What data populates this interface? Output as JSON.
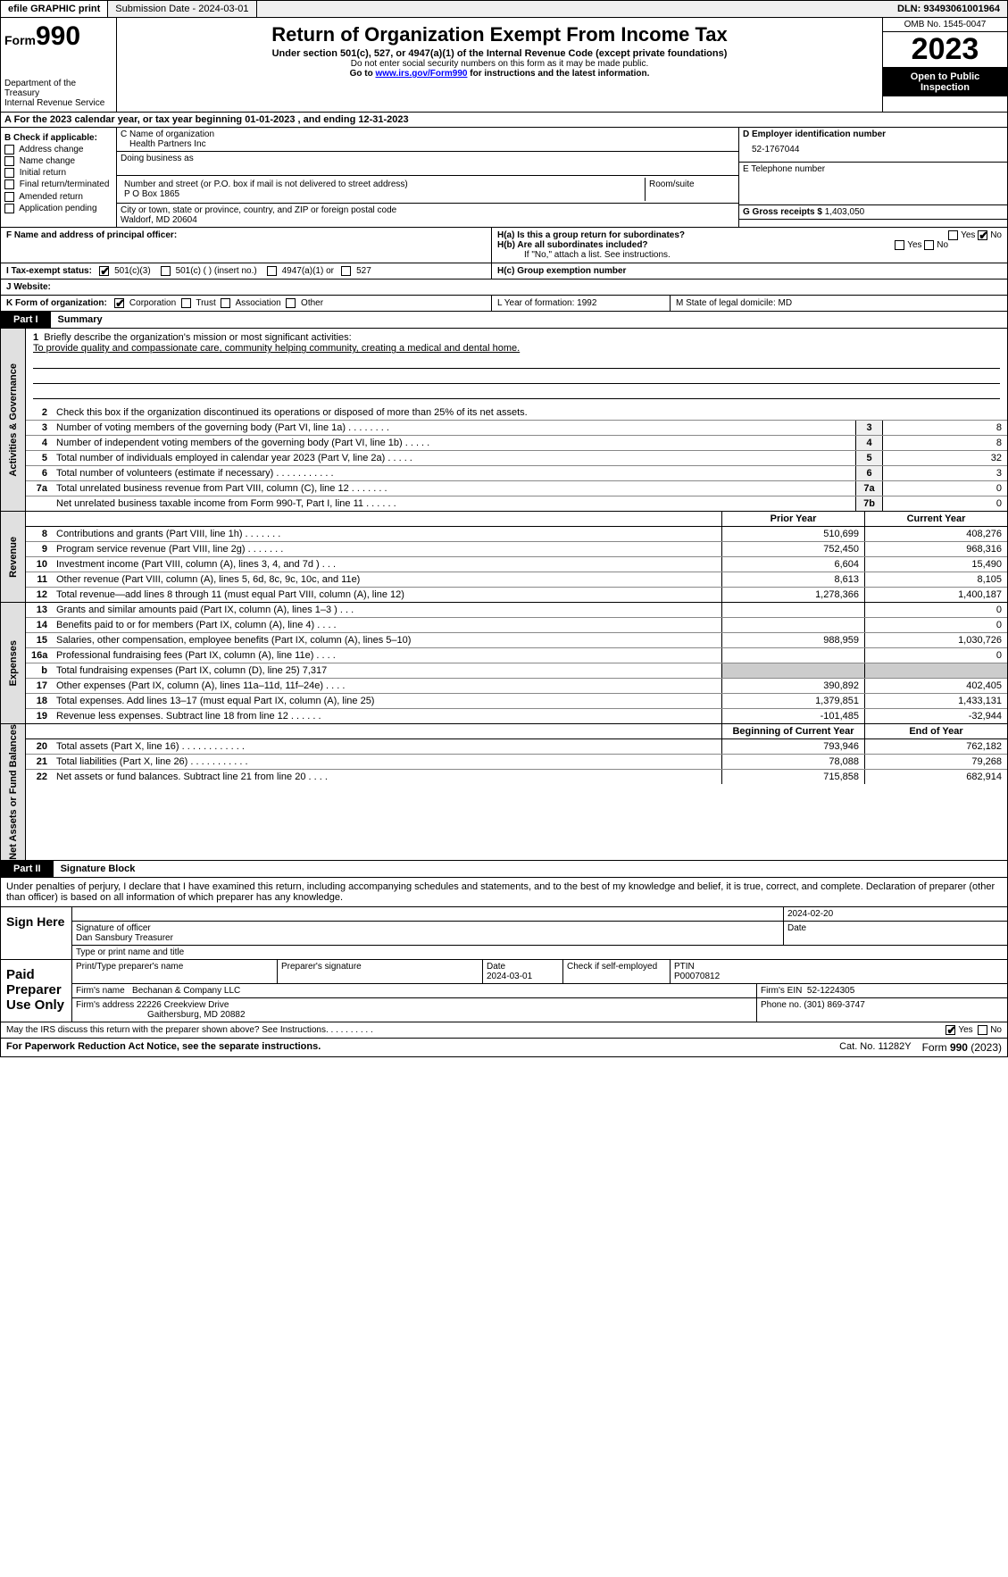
{
  "topbar": {
    "efile": "efile GRAPHIC print",
    "submission": "Submission Date - 2024-03-01",
    "dln": "DLN: 93493061001964"
  },
  "header": {
    "form_label": "Form",
    "form_num": "990",
    "dept1": "Department of the Treasury",
    "dept2": "Internal Revenue Service",
    "title": "Return of Organization Exempt From Income Tax",
    "subtitle": "Under section 501(c), 527, or 4947(a)(1) of the Internal Revenue Code (except private foundations)",
    "note1": "Do not enter social security numbers on this form as it may be made public.",
    "note2_pre": "Go to ",
    "note2_link": "www.irs.gov/Form990",
    "note2_post": " for instructions and the latest information.",
    "omb": "OMB No. 1545-0047",
    "year": "2023",
    "inspect": "Open to Public Inspection"
  },
  "sectionA": "A For the 2023 calendar year, or tax year beginning 01-01-2023    , and ending 12-31-2023",
  "colB": {
    "title": "B Check if applicable:",
    "items": [
      "Address change",
      "Name change",
      "Initial return",
      "Final return/terminated",
      "Amended return",
      "Application pending"
    ]
  },
  "colC": {
    "name_lbl": "C Name of organization",
    "name": "Health Partners Inc",
    "dba_lbl": "Doing business as",
    "addr_lbl": "Number and street (or P.O. box if mail is not delivered to street address)",
    "addr": "P O Box 1865",
    "room_lbl": "Room/suite",
    "city_lbl": "City or town, state or province, country, and ZIP or foreign postal code",
    "city": "Waldorf, MD  20604"
  },
  "colD": {
    "ein_lbl": "D Employer identification number",
    "ein": "52-1767044",
    "phone_lbl": "E Telephone number",
    "gross_lbl": "G Gross receipts $ ",
    "gross": "1,403,050"
  },
  "rowF": {
    "label": "F  Name and address of principal officer:",
    "ha": "H(a)  Is this a group return for subordinates?",
    "hb": "H(b)  Are all subordinates included?",
    "hb_note": "If \"No,\" attach a list. See instructions.",
    "hc": "H(c)  Group exemption number",
    "yes": "Yes",
    "no": "No"
  },
  "rowI": {
    "label": "I  Tax-exempt status:",
    "o1": "501(c)(3)",
    "o2": "501(c) (  ) (insert no.)",
    "o3": "4947(a)(1) or",
    "o4": "527"
  },
  "rowJ": "J  Website:",
  "rowK": {
    "label": "K Form of organization:",
    "o1": "Corporation",
    "o2": "Trust",
    "o3": "Association",
    "o4": "Other",
    "L": "L Year of formation: 1992",
    "M": "M State of legal domicile: MD"
  },
  "part1": {
    "tag": "Part I",
    "title": "Summary"
  },
  "tabs": {
    "t1": "Activities & Governance",
    "t2": "Revenue",
    "t3": "Expenses",
    "t4": "Net Assets or Fund Balances"
  },
  "mission": {
    "q": "Briefly describe the organization's mission or most significant activities:",
    "a": "To provide quality and compassionate care, community helping community, creating a medical and dental home."
  },
  "line2": "Check this box      if the organization discontinued its operations or disposed of more than 25% of its net assets.",
  "lines_gov": [
    {
      "n": "3",
      "d": "Number of voting members of the governing body (Part VI, line 1a)  .   .   .   .   .   .   .   .",
      "b": "3",
      "v": "8"
    },
    {
      "n": "4",
      "d": "Number of independent voting members of the governing body (Part VI, line 1b)  .   .   .   .   .",
      "b": "4",
      "v": "8"
    },
    {
      "n": "5",
      "d": "Total number of individuals employed in calendar year 2023 (Part V, line 2a)  .   .   .   .   .",
      "b": "5",
      "v": "32"
    },
    {
      "n": "6",
      "d": "Total number of volunteers (estimate if necessary)  .   .   .   .   .   .   .   .   .   .   .",
      "b": "6",
      "v": "3"
    },
    {
      "n": "7a",
      "d": "Total unrelated business revenue from Part VIII, column (C), line 12  .   .   .   .   .   .   .",
      "b": "7a",
      "v": "0"
    },
    {
      "n": "",
      "d": "Net unrelated business taxable income from Form 990-T, Part I, line 11  .   .   .   .   .   .",
      "b": "7b",
      "v": "0"
    }
  ],
  "hdr_rev": {
    "c1": "Prior Year",
    "c2": "Current Year"
  },
  "lines_rev": [
    {
      "n": "8",
      "d": "Contributions and grants (Part VIII, line 1h)   .   .   .   .   .   .   .",
      "v1": "510,699",
      "v2": "408,276"
    },
    {
      "n": "9",
      "d": "Program service revenue (Part VIII, line 2g)   .   .   .   .   .   .   .",
      "v1": "752,450",
      "v2": "968,316"
    },
    {
      "n": "10",
      "d": "Investment income (Part VIII, column (A), lines 3, 4, and 7d )   .   .   .",
      "v1": "6,604",
      "v2": "15,490"
    },
    {
      "n": "11",
      "d": "Other revenue (Part VIII, column (A), lines 5, 6d, 8c, 9c, 10c, and 11e)",
      "v1": "8,613",
      "v2": "8,105"
    },
    {
      "n": "12",
      "d": "Total revenue—add lines 8 through 11 (must equal Part VIII, column (A), line 12)",
      "v1": "1,278,366",
      "v2": "1,400,187"
    }
  ],
  "lines_exp": [
    {
      "n": "13",
      "d": "Grants and similar amounts paid (Part IX, column (A), lines 1–3 )   .   .   .",
      "v1": "",
      "v2": "0"
    },
    {
      "n": "14",
      "d": "Benefits paid to or for members (Part IX, column (A), line 4)   .   .   .   .",
      "v1": "",
      "v2": "0"
    },
    {
      "n": "15",
      "d": "Salaries, other compensation, employee benefits (Part IX, column (A), lines 5–10)",
      "v1": "988,959",
      "v2": "1,030,726"
    },
    {
      "n": "16a",
      "d": "Professional fundraising fees (Part IX, column (A), line 11e)   .   .   .   .",
      "v1": "",
      "v2": "0"
    },
    {
      "n": "b",
      "d": "Total fundraising expenses (Part IX, column (D), line 25) 7,317",
      "v1": "SHADE",
      "v2": "SHADE"
    },
    {
      "n": "17",
      "d": "Other expenses (Part IX, column (A), lines 11a–11d, 11f–24e)   .   .   .   .",
      "v1": "390,892",
      "v2": "402,405"
    },
    {
      "n": "18",
      "d": "Total expenses. Add lines 13–17 (must equal Part IX, column (A), line 25)",
      "v1": "1,379,851",
      "v2": "1,433,131"
    },
    {
      "n": "19",
      "d": "Revenue less expenses. Subtract line 18 from line 12   .   .   .   .   .   .",
      "v1": "-101,485",
      "v2": "-32,944"
    }
  ],
  "hdr_net": {
    "c1": "Beginning of Current Year",
    "c2": "End of Year"
  },
  "lines_net": [
    {
      "n": "20",
      "d": "Total assets (Part X, line 16)   .   .   .   .   .   .   .   .   .   .   .   .",
      "v1": "793,946",
      "v2": "762,182"
    },
    {
      "n": "21",
      "d": "Total liabilities (Part X, line 26)   .   .   .   .   .   .   .   .   .   .   .",
      "v1": "78,088",
      "v2": "79,268"
    },
    {
      "n": "22",
      "d": "Net assets or fund balances. Subtract line 21 from line 20   .   .   .   .",
      "v1": "715,858",
      "v2": "682,914"
    }
  ],
  "part2": {
    "tag": "Part II",
    "title": "Signature Block"
  },
  "perjury": "Under penalties of perjury, I declare that I have examined this return, including accompanying schedules and statements, and to the best of my knowledge and belief, it is true, correct, and complete. Declaration of preparer (other than officer) is based on all information of which preparer has any knowledge.",
  "sign": {
    "left": "Sign Here",
    "date": "2024-02-20",
    "sig_lbl": "Signature of officer",
    "officer": "Dan Sansbury Treasurer",
    "type_lbl": "Type or print name and title",
    "date_lbl": "Date"
  },
  "prep": {
    "left": "Paid Preparer Use Only",
    "name_lbl": "Print/Type preparer's name",
    "sig_lbl": "Preparer's signature",
    "date_lbl": "Date",
    "date": "2024-03-01",
    "self_lbl": "Check       if self-employed",
    "ptin_lbl": "PTIN",
    "ptin": "P00070812",
    "firm_name_lbl": "Firm's name",
    "firm_name": "Bechanan & Company LLC",
    "firm_ein_lbl": "Firm's EIN",
    "firm_ein": "52-1224305",
    "firm_addr_lbl": "Firm's address",
    "firm_addr1": "22226 Creekview Drive",
    "firm_addr2": "Gaithersburg, MD  20882",
    "phone_lbl": "Phone no.",
    "phone": "(301) 869-3747"
  },
  "discuss": {
    "q": "May the IRS discuss this return with the preparer shown above? See Instructions.   .   .   .   .   .   .   .   .   .",
    "yes": "Yes",
    "no": "No"
  },
  "footer": {
    "pra": "For Paperwork Reduction Act Notice, see the separate instructions.",
    "cat": "Cat. No. 11282Y",
    "form": "Form 990 (2023)"
  }
}
